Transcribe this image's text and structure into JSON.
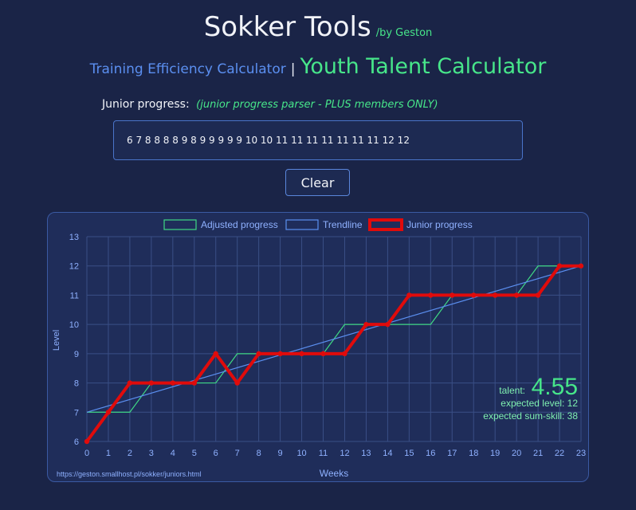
{
  "header": {
    "title": "Sokker Tools",
    "byline": "/by Geston"
  },
  "nav": {
    "training_link": "Training Efficiency Calculator",
    "separator": "|",
    "youth_link": "Youth Talent Calculator"
  },
  "form": {
    "label": "Junior progress:",
    "note": "(junior progress parser - PLUS members ONLY)",
    "input_value": "6 7 8 8 8 8 9 8 9 9 9 9 9 10 10 11 11 11 11 11 11 11 12 12",
    "clear_label": "Clear"
  },
  "chart": {
    "footer_url": "https://geston.smallhost.pl/sokker/juniors.html",
    "talent_label": "talent:",
    "talent_value": "4.55",
    "expected_level_text": "expected level: 12",
    "expected_sumskill_text": "expected sum-skill: 38"
  },
  "chart_data": {
    "type": "line",
    "xlabel": "Weeks",
    "ylabel": "Level",
    "xlim": [
      0,
      23
    ],
    "ylim": [
      6,
      13
    ],
    "x": [
      0,
      1,
      2,
      3,
      4,
      5,
      6,
      7,
      8,
      9,
      10,
      11,
      12,
      13,
      14,
      15,
      16,
      17,
      18,
      19,
      20,
      21,
      22,
      23
    ],
    "grid": true,
    "legend_position": "top-center",
    "series": [
      {
        "name": "Adjusted progress",
        "color": "#3fd884",
        "values": [
          7,
          7,
          7,
          8,
          8,
          8,
          8,
          9,
          9,
          9,
          9,
          9,
          10,
          10,
          10,
          10,
          10,
          11,
          11,
          11,
          11,
          12,
          12,
          12
        ]
      },
      {
        "name": "Trendline",
        "color": "#5b8ff0",
        "values_endpoints": [
          [
            0,
            7
          ],
          [
            23,
            12
          ]
        ]
      },
      {
        "name": "Junior progress",
        "color": "#e00b0b",
        "values": [
          6,
          7,
          8,
          8,
          8,
          8,
          9,
          8,
          9,
          9,
          9,
          9,
          9,
          10,
          10,
          11,
          11,
          11,
          11,
          11,
          11,
          11,
          12,
          12
        ]
      }
    ]
  }
}
